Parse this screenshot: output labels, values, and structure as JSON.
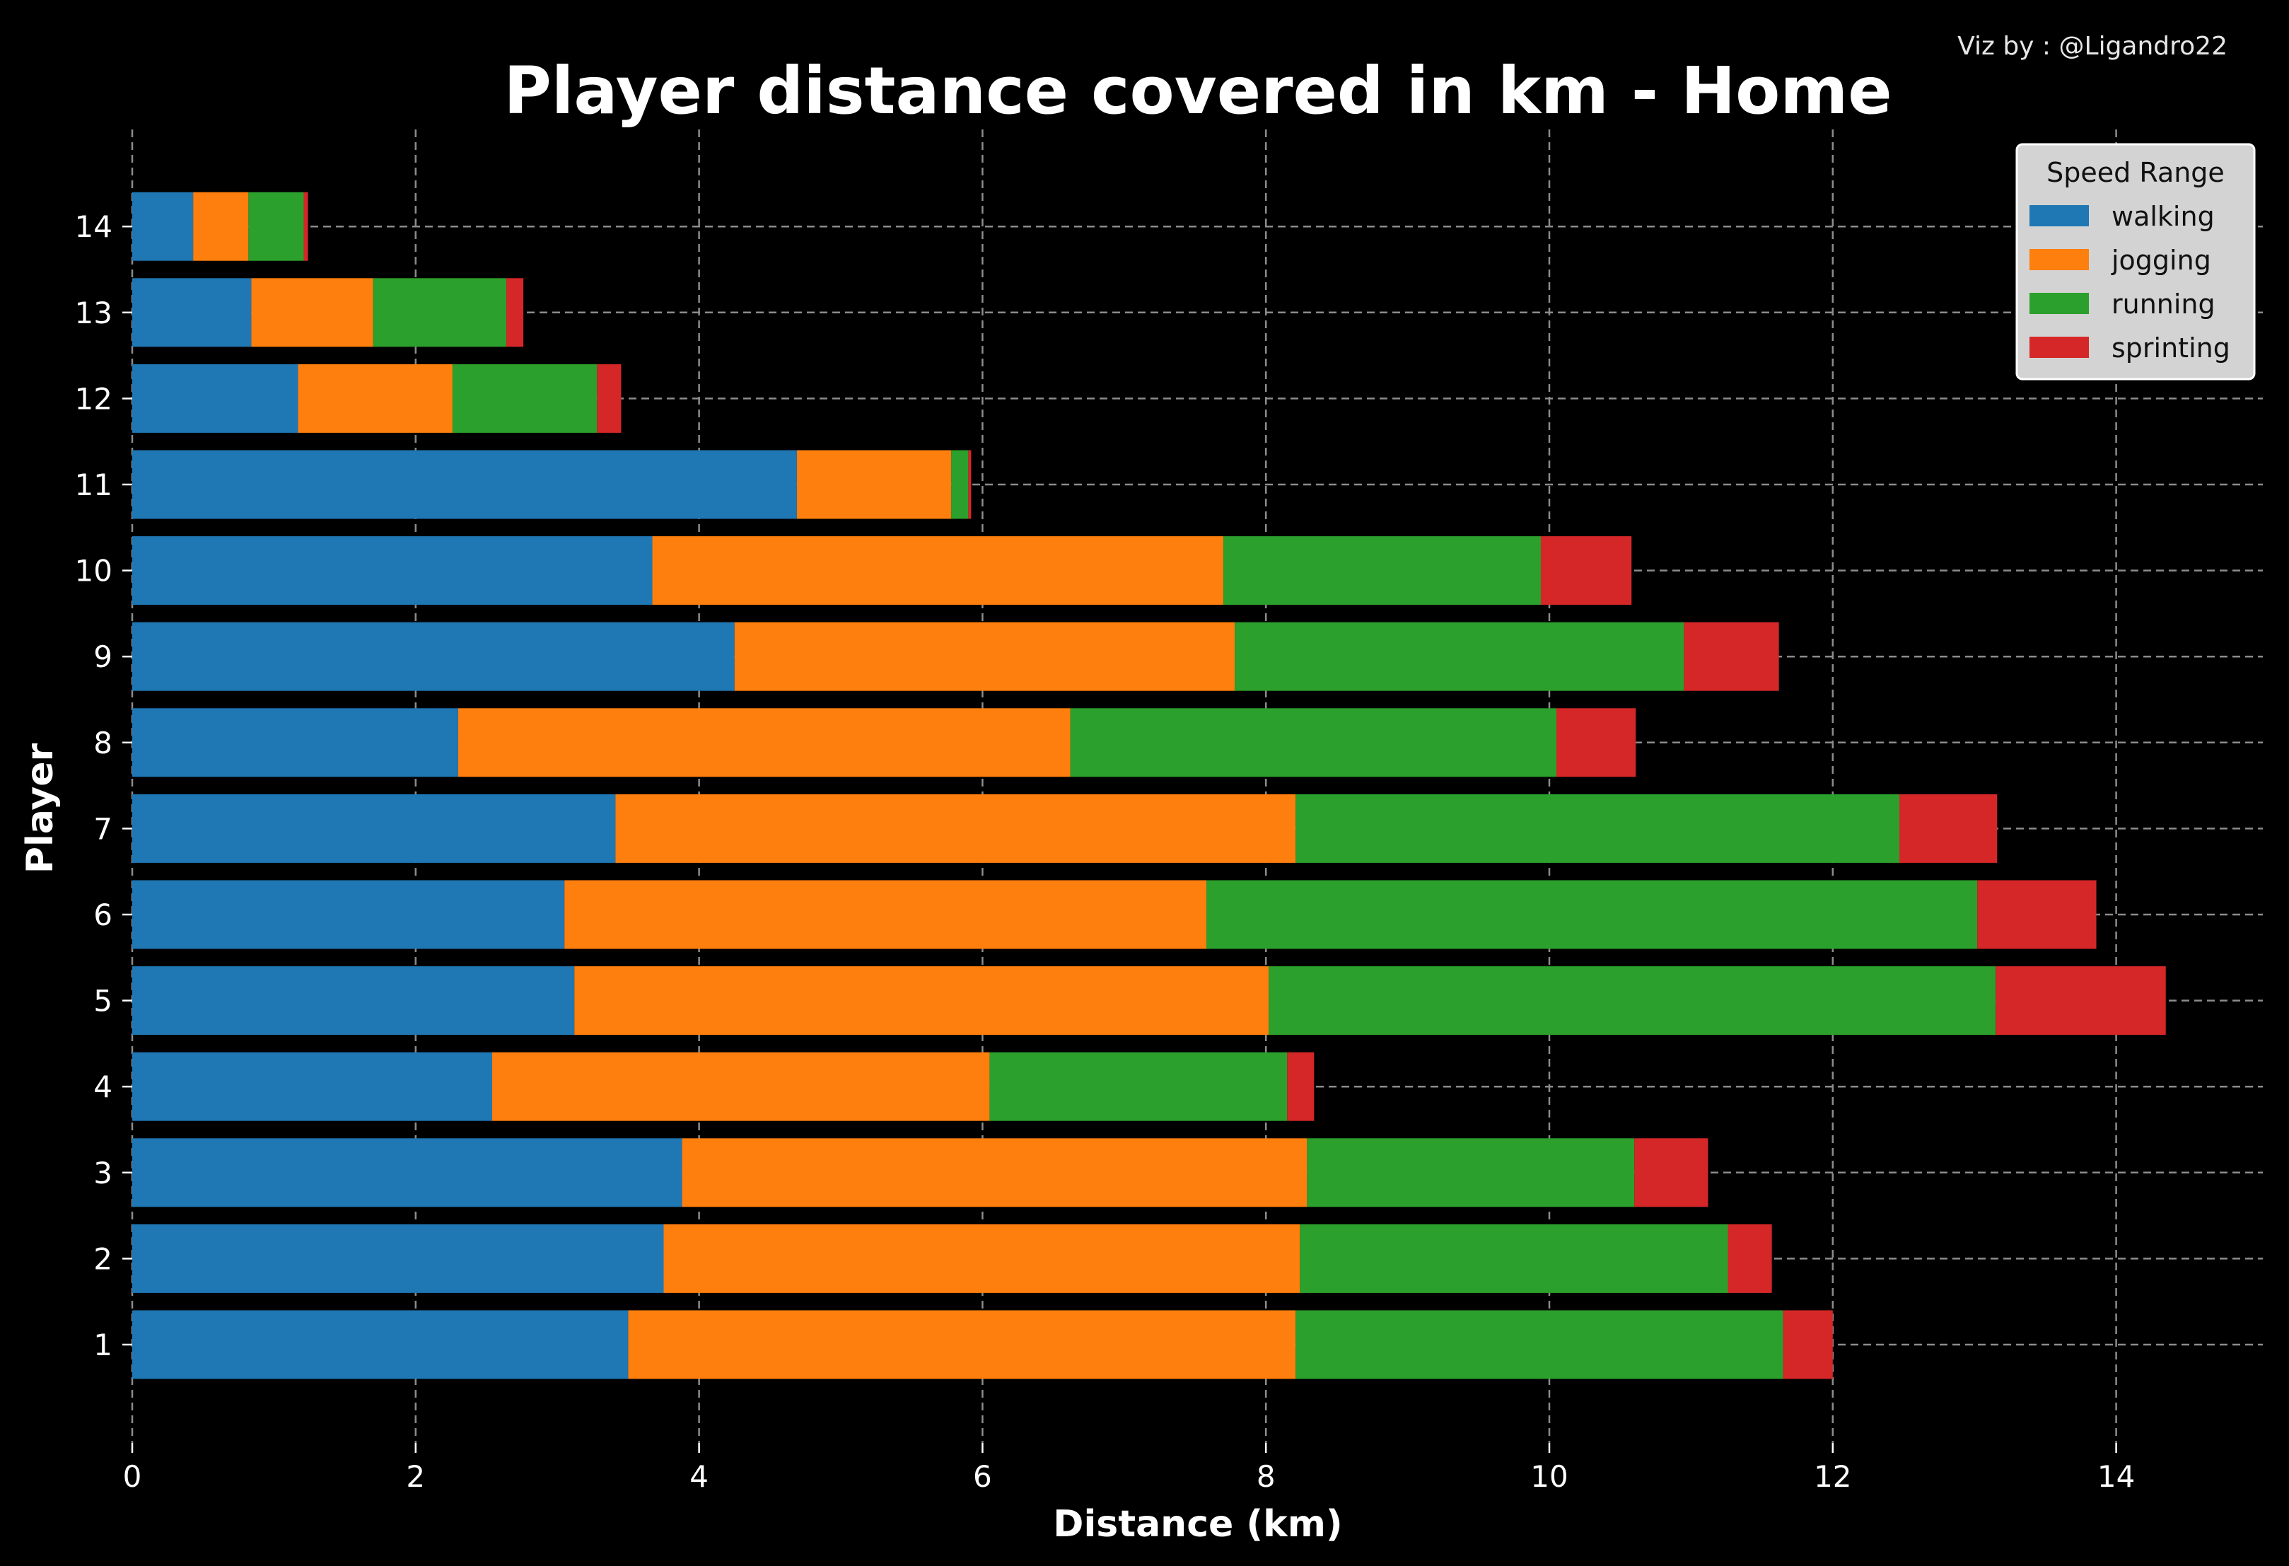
{
  "credit": "Viz by : @Ligandro22",
  "chart_data": {
    "type": "bar",
    "orientation": "horizontal",
    "stacked": true,
    "title": "Player distance covered in km - Home",
    "xlabel": "Distance (km)",
    "ylabel": "Player",
    "xlim": [
      0,
      15.2
    ],
    "x_ticks": [
      "0",
      "2",
      "4",
      "6",
      "8",
      "10",
      "12",
      "14"
    ],
    "grid": true,
    "legend": {
      "title": "Speed Range",
      "position": "top-right"
    },
    "categories": [
      "1",
      "2",
      "3",
      "4",
      "5",
      "6",
      "7",
      "8",
      "9",
      "10",
      "11",
      "12",
      "13",
      "14"
    ],
    "series": [
      {
        "name": "walking",
        "color": "#1f77b4",
        "values": [
          3.5,
          3.75,
          3.88,
          2.54,
          3.12,
          3.05,
          3.41,
          2.3,
          4.25,
          3.67,
          4.69,
          1.17,
          0.84,
          0.43
        ]
      },
      {
        "name": "jogging",
        "color": "#ff7f0e",
        "values": [
          4.71,
          4.49,
          4.41,
          3.51,
          4.9,
          4.53,
          4.8,
          4.32,
          3.53,
          4.03,
          1.09,
          1.09,
          0.86,
          0.39
        ]
      },
      {
        "name": "running",
        "color": "#2ca02c",
        "values": [
          3.44,
          3.02,
          2.31,
          2.1,
          5.13,
          5.44,
          4.26,
          3.43,
          3.17,
          2.24,
          0.12,
          1.02,
          0.94,
          0.39
        ]
      },
      {
        "name": "sprinting",
        "color": "#d62728",
        "values": [
          0.35,
          0.31,
          0.52,
          0.19,
          1.2,
          0.84,
          0.69,
          0.56,
          0.67,
          0.64,
          0.02,
          0.17,
          0.12,
          0.03
        ]
      }
    ]
  }
}
